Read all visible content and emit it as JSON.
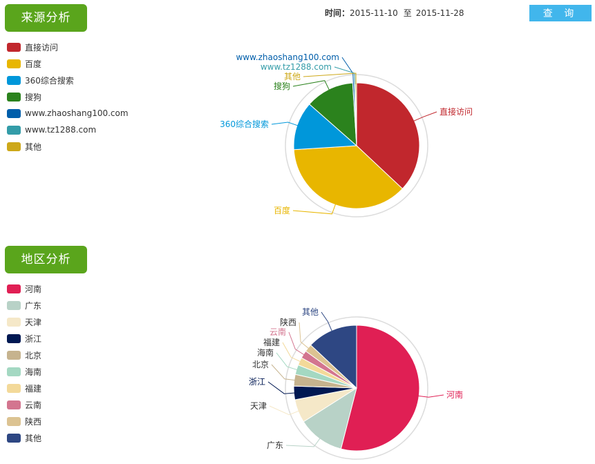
{
  "header": {
    "time_label": "时间：",
    "start_date": "2015-11-10",
    "to_label": "至",
    "end_date": "2015-11-28",
    "query_button": "查 询"
  },
  "source_section": {
    "title": "来源分析"
  },
  "region_section": {
    "title": "地区分析"
  },
  "chart_data": [
    {
      "type": "pie",
      "title": "",
      "legend": "left",
      "series": [
        {
          "name": "直接访问",
          "value": 37.0,
          "color": "#c1272d"
        },
        {
          "name": "百度",
          "value": 37.0,
          "color": "#e8b600"
        },
        {
          "name": "360综合搜索",
          "value": 12.5,
          "color": "#0097da"
        },
        {
          "name": "搜狗",
          "value": 12.5,
          "color": "#2b821d"
        },
        {
          "name": "www.zhaoshang100.com",
          "value": 0.4,
          "color": "#005eaa"
        },
        {
          "name": "www.tz1288.com",
          "value": 0.3,
          "color": "#339ca8"
        },
        {
          "name": "其他",
          "value": 0.3,
          "color": "#cda819"
        }
      ]
    },
    {
      "type": "pie",
      "title": "",
      "legend": "left",
      "series": [
        {
          "name": "河南",
          "value": 54.0,
          "color": "#e01f54"
        },
        {
          "name": "广东",
          "value": 12.0,
          "color": "#b8d2c7"
        },
        {
          "name": "天津",
          "value": 6.0,
          "color": "#f5e8c8"
        },
        {
          "name": "浙江",
          "value": 3.5,
          "color": "#001852"
        },
        {
          "name": "北京",
          "value": 3.0,
          "color": "#c6b38e"
        },
        {
          "name": "海南",
          "value": 2.5,
          "color": "#a4d8c2"
        },
        {
          "name": "福建",
          "value": 2.0,
          "color": "#f3d999"
        },
        {
          "name": "云南",
          "value": 2.0,
          "color": "#d3758f"
        },
        {
          "name": "陕西",
          "value": 2.0,
          "color": "#dcc392"
        },
        {
          "name": "其他",
          "value": 13.0,
          "color": "#2e4783"
        }
      ]
    }
  ]
}
